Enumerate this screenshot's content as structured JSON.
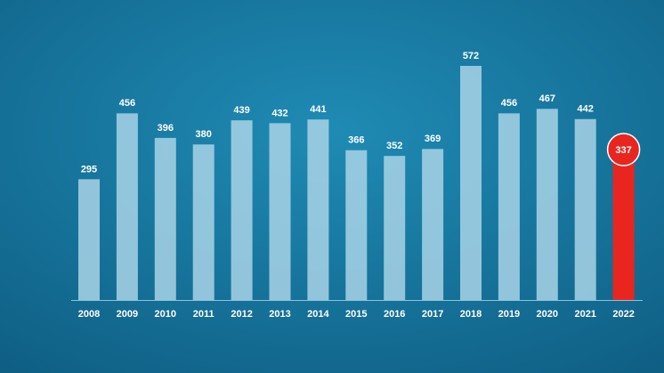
{
  "chart_data": {
    "type": "bar",
    "categories": [
      "2008",
      "2009",
      "2010",
      "2011",
      "2012",
      "2013",
      "2014",
      "2015",
      "2016",
      "2017",
      "2018",
      "2019",
      "2020",
      "2021",
      "2022"
    ],
    "values": [
      295,
      456,
      396,
      380,
      439,
      432,
      441,
      366,
      352,
      369,
      572,
      456,
      467,
      442,
      337
    ],
    "colors": [
      "#a8d3e6",
      "#a8d3e6",
      "#a8d3e6",
      "#a8d3e6",
      "#a8d3e6",
      "#a8d3e6",
      "#a8d3e6",
      "#a8d3e6",
      "#a8d3e6",
      "#a8d3e6",
      "#a8d3e6",
      "#a8d3e6",
      "#a8d3e6",
      "#a8d3e6",
      "#e8261f"
    ]
  }
}
